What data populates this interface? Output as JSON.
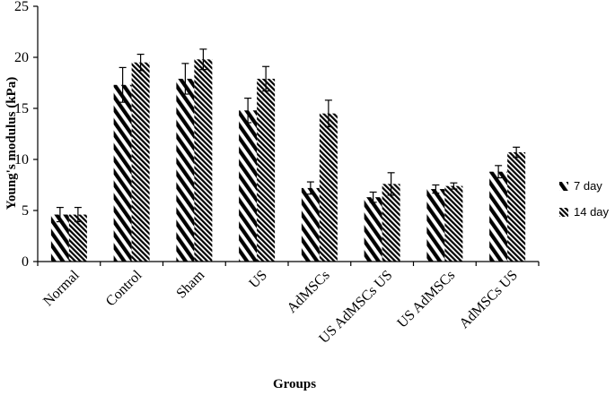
{
  "chart_data": {
    "type": "bar",
    "title": "",
    "xlabel": "Groups",
    "ylabel": "Young's modulus (kPa)",
    "ylim": [
      0,
      25
    ],
    "yticks": [
      0,
      5,
      10,
      15,
      20,
      25
    ],
    "grid": false,
    "legend_position": "right",
    "categories": [
      "Normal",
      "Control",
      "Sham",
      "US",
      "AdMSCs",
      "US AdMSCs US",
      "US AdMSCs",
      "AdMSCs US"
    ],
    "series": [
      {
        "name": "7 day",
        "pattern": "wide-diagonal-stripes",
        "values": [
          4.6,
          17.3,
          17.9,
          14.8,
          7.2,
          6.3,
          7.1,
          8.8
        ],
        "errors": [
          0.7,
          1.7,
          1.5,
          1.2,
          0.6,
          0.5,
          0.4,
          0.6
        ]
      },
      {
        "name": "14 day",
        "pattern": "dense-diagonal-stripes",
        "values": [
          4.6,
          19.5,
          19.8,
          17.9,
          14.5,
          7.6,
          7.4,
          10.7
        ],
        "errors": [
          0.7,
          0.8,
          1.0,
          1.2,
          1.3,
          1.1,
          0.3,
          0.5
        ]
      }
    ]
  }
}
